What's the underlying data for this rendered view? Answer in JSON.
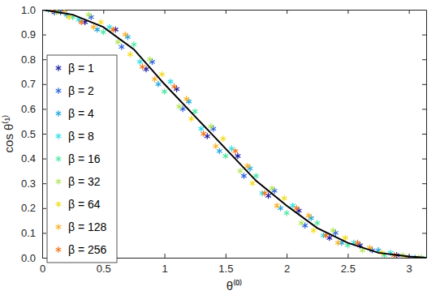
{
  "chart_data": {
    "type": "scatter",
    "x_label": "θ⁽⁰⁾",
    "y_label": "cos θ⁽¹⁾",
    "xlim": [
      0,
      3.1416
    ],
    "ylim": [
      0,
      1
    ],
    "xticks": [
      0,
      0.5,
      1,
      1.5,
      2,
      2.5,
      3
    ],
    "yticks": [
      {
        "value": 0,
        "label": "0.0"
      },
      0.1,
      0.2,
      0.3,
      0.4,
      0.5,
      0.6,
      0.7,
      0.8,
      0.9,
      {
        "value": 1,
        "label": "1.0"
      }
    ],
    "legend": "upper-left",
    "marker": "asterisk",
    "series": [
      {
        "name": "β = 1",
        "color": "#1a1aa6",
        "x": [
          0.1,
          0.35,
          0.6,
          0.85,
          1.1,
          1.35,
          1.6,
          1.85,
          2.1,
          2.35,
          2.6,
          2.9
        ],
        "values": [
          0.99,
          0.95,
          0.92,
          0.76,
          0.68,
          0.49,
          0.41,
          0.25,
          0.19,
          0.08,
          0.05,
          0.01
        ]
      },
      {
        "name": "β = 2",
        "color": "#2b63e0",
        "x": [
          0.15,
          0.4,
          0.65,
          0.9,
          1.15,
          1.4,
          1.65,
          1.9,
          2.15,
          2.4,
          2.7,
          3.0
        ],
        "values": [
          0.99,
          0.97,
          0.85,
          0.79,
          0.6,
          0.52,
          0.33,
          0.27,
          0.13,
          0.1,
          0.03,
          0.0
        ]
      },
      {
        "name": "β = 4",
        "color": "#1ea6df",
        "x": [
          0.2,
          0.45,
          0.7,
          0.95,
          1.2,
          1.45,
          1.7,
          1.95,
          2.2,
          2.45,
          2.75,
          3.05
        ],
        "values": [
          0.98,
          0.92,
          0.89,
          0.7,
          0.63,
          0.43,
          0.36,
          0.2,
          0.16,
          0.06,
          0.03,
          0.0
        ]
      },
      {
        "name": "β = 8",
        "color": "#2de0e6",
        "x": [
          0.05,
          0.3,
          0.55,
          0.8,
          1.05,
          1.3,
          1.55,
          1.8,
          2.05,
          2.3,
          2.55,
          2.85
        ],
        "values": [
          1.0,
          0.96,
          0.93,
          0.79,
          0.71,
          0.52,
          0.44,
          0.26,
          0.21,
          0.09,
          0.06,
          0.02
        ]
      },
      {
        "name": "β = 16",
        "color": "#4fe8a2",
        "x": [
          0.25,
          0.5,
          0.75,
          1.0,
          1.25,
          1.5,
          1.75,
          2.0,
          2.25,
          2.5,
          2.8,
          3.1
        ],
        "values": [
          0.97,
          0.91,
          0.86,
          0.67,
          0.59,
          0.41,
          0.33,
          0.18,
          0.14,
          0.05,
          0.01,
          0.0
        ]
      },
      {
        "name": "β = 32",
        "color": "#b2e65a",
        "x": [
          0.12,
          0.38,
          0.62,
          0.88,
          1.12,
          1.38,
          1.62,
          1.88,
          2.12,
          2.38,
          2.62,
          2.95
        ],
        "values": [
          0.99,
          0.98,
          0.87,
          0.8,
          0.61,
          0.53,
          0.35,
          0.28,
          0.14,
          0.11,
          0.03,
          0.01
        ]
      },
      {
        "name": "β = 64",
        "color": "#f2dc1e",
        "x": [
          0.22,
          0.48,
          0.72,
          0.98,
          1.22,
          1.48,
          1.72,
          1.98,
          2.22,
          2.48,
          2.78,
          3.08
        ],
        "values": [
          0.97,
          0.95,
          0.82,
          0.74,
          0.56,
          0.48,
          0.3,
          0.24,
          0.11,
          0.08,
          0.02,
          0.0
        ]
      },
      {
        "name": "β = 128",
        "color": "#fbb025",
        "x": [
          0.18,
          0.42,
          0.68,
          0.92,
          1.18,
          1.42,
          1.68,
          1.92,
          2.18,
          2.42,
          2.68,
          2.98
        ],
        "values": [
          0.99,
          0.93,
          0.9,
          0.72,
          0.64,
          0.45,
          0.37,
          0.21,
          0.17,
          0.06,
          0.04,
          0.0
        ]
      },
      {
        "name": "β = 256",
        "color": "#f5731a",
        "x": [
          0.08,
          0.32,
          0.58,
          0.82,
          1.08,
          1.32,
          1.58,
          1.82,
          2.08,
          2.32,
          2.58,
          2.88
        ],
        "values": [
          1.0,
          0.95,
          0.92,
          0.77,
          0.69,
          0.5,
          0.43,
          0.26,
          0.2,
          0.09,
          0.06,
          0.01
        ]
      },
      {
        "type": "line",
        "color": "#000000",
        "line_style": "solid",
        "x": [
          0,
          0.25,
          0.5,
          0.75,
          1,
          1.25,
          1.5,
          1.75,
          2,
          2.25,
          2.5,
          2.75,
          3,
          3.1416
        ],
        "values": [
          1,
          0.98,
          0.93,
          0.84,
          0.7,
          0.57,
          0.44,
          0.31,
          0.21,
          0.12,
          0.06,
          0.02,
          0.005,
          0
        ]
      }
    ]
  }
}
